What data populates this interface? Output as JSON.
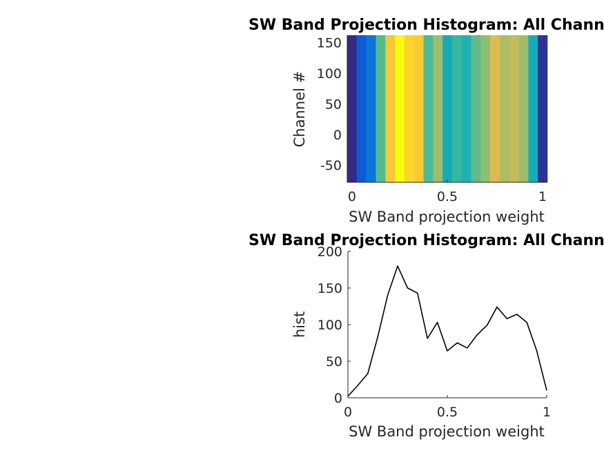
{
  "chart_data": [
    {
      "type": "heatmap",
      "title": "SW Band Projection Histogram: All Channels",
      "xlabel": "SW Band projection weight",
      "ylabel": "Channel #",
      "xlim": [
        -0.025,
        1.025
      ],
      "ylim": [
        -78,
        162
      ],
      "xticks": [
        0,
        0.5,
        1
      ],
      "xtick_labels": [
        "0",
        "0.5",
        "1"
      ],
      "yticks": [
        -50,
        0,
        50,
        100,
        150
      ],
      "ytick_labels": [
        "-50",
        "0",
        "50",
        "100",
        "150"
      ],
      "colormap": "parula",
      "x": [
        0,
        0.05,
        0.1,
        0.15,
        0.2,
        0.25,
        0.3,
        0.35,
        0.4,
        0.45,
        0.5,
        0.55,
        0.6,
        0.65,
        0.7,
        0.75,
        0.8,
        0.85,
        0.9,
        0.95,
        1
      ],
      "values": [
        7,
        22,
        33,
        83,
        140,
        180,
        150,
        143,
        81,
        103,
        64,
        75,
        68,
        86,
        99,
        124,
        108,
        114,
        103,
        64,
        10
      ],
      "clim": [
        7,
        180
      ],
      "grid": false
    },
    {
      "type": "line",
      "title": "SW Band Projection Histogram: All Channels",
      "xlabel": "SW Band projection weight",
      "ylabel": "hist",
      "xlim": [
        0,
        1
      ],
      "ylim": [
        0,
        200
      ],
      "xticks": [
        0,
        0.5,
        1
      ],
      "xtick_labels": [
        "0",
        "0.5",
        "1"
      ],
      "yticks": [
        0,
        50,
        100,
        150,
        200
      ],
      "ytick_labels": [
        "0",
        "50",
        "100",
        "150",
        "200"
      ],
      "x": [
        0,
        0.05,
        0.1,
        0.15,
        0.2,
        0.25,
        0.3,
        0.35,
        0.4,
        0.45,
        0.5,
        0.55,
        0.6,
        0.65,
        0.7,
        0.75,
        0.8,
        0.85,
        0.9,
        0.95,
        1
      ],
      "series": [
        {
          "values": [
            2,
            17,
            33,
            83,
            140,
            180,
            150,
            143,
            81,
            103,
            64,
            75,
            68,
            86,
            99,
            124,
            108,
            114,
            103,
            64,
            10
          ],
          "color": "#000000"
        }
      ],
      "grid": false
    }
  ]
}
